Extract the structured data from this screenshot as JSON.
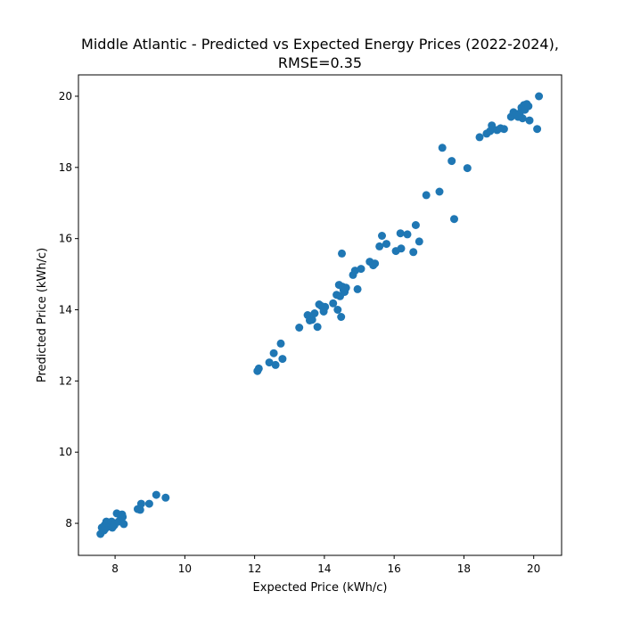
{
  "chart_data": {
    "type": "scatter",
    "title": "Middle Atlantic - Predicted vs Expected Energy Prices (2022-2024),",
    "subtitle": "RMSE=0.35",
    "xlabel": "Expected Price (kWh/c)",
    "ylabel": "Predicted Price (kWh/c)",
    "xlim": [
      6.95,
      20.8
    ],
    "ylim": [
      7.1,
      20.6
    ],
    "xticks": [
      8,
      10,
      12,
      14,
      16,
      18,
      20
    ],
    "yticks": [
      8,
      10,
      12,
      14,
      16,
      18,
      20
    ],
    "grid": false,
    "color": "#1f77b4",
    "x": [
      7.58,
      7.62,
      7.68,
      7.7,
      7.72,
      7.75,
      7.77,
      7.8,
      7.82,
      7.85,
      7.88,
      7.9,
      7.92,
      7.95,
      7.98,
      8.05,
      8.1,
      8.15,
      8.2,
      8.22,
      8.25,
      8.65,
      8.72,
      8.75,
      8.98,
      9.18,
      9.45,
      12.08,
      12.12,
      12.42,
      12.55,
      12.6,
      12.75,
      12.8,
      13.28,
      13.52,
      13.58,
      13.65,
      13.72,
      13.8,
      13.85,
      13.92,
      13.98,
      14.02,
      14.25,
      14.35,
      14.38,
      14.42,
      14.45,
      14.48,
      14.5,
      14.52,
      14.55,
      14.58,
      14.62,
      14.82,
      14.88,
      14.95,
      15.05,
      15.3,
      15.4,
      15.45,
      15.58,
      15.65,
      15.78,
      16.05,
      16.18,
      16.2,
      16.38,
      16.55,
      16.62,
      16.72,
      16.92,
      17.3,
      17.38,
      17.65,
      17.72,
      18.1,
      18.45,
      18.65,
      18.75,
      18.8,
      18.95,
      19.05,
      19.15,
      19.35,
      19.42,
      19.5,
      19.55,
      19.6,
      19.65,
      19.68,
      19.72,
      19.75,
      19.8,
      19.85,
      19.88,
      20.1,
      20.15
    ],
    "y": [
      7.7,
      7.88,
      7.8,
      7.95,
      7.85,
      8.05,
      7.9,
      7.98,
      8.02,
      7.92,
      7.96,
      8.05,
      7.88,
      7.92,
      7.95,
      8.28,
      8.05,
      8.22,
      8.25,
      8.18,
      7.98,
      8.4,
      8.38,
      8.55,
      8.55,
      8.8,
      8.72,
      12.28,
      12.35,
      12.52,
      12.78,
      12.45,
      13.05,
      12.62,
      13.5,
      13.85,
      13.7,
      13.72,
      13.9,
      13.52,
      14.15,
      14.1,
      13.95,
      14.08,
      14.18,
      14.42,
      14.0,
      14.7,
      14.38,
      13.8,
      15.58,
      14.65,
      14.55,
      14.5,
      14.62,
      14.98,
      15.1,
      14.58,
      15.15,
      15.35,
      15.25,
      15.3,
      15.78,
      16.08,
      15.85,
      15.65,
      16.15,
      15.72,
      16.12,
      15.62,
      16.38,
      15.92,
      17.22,
      17.32,
      18.55,
      18.18,
      16.55,
      17.98,
      18.85,
      18.95,
      19.02,
      19.18,
      19.05,
      19.1,
      19.08,
      19.42,
      19.55,
      19.5,
      19.42,
      19.52,
      19.68,
      19.38,
      19.75,
      19.62,
      19.78,
      19.72,
      19.32,
      19.08,
      20.0
    ]
  }
}
